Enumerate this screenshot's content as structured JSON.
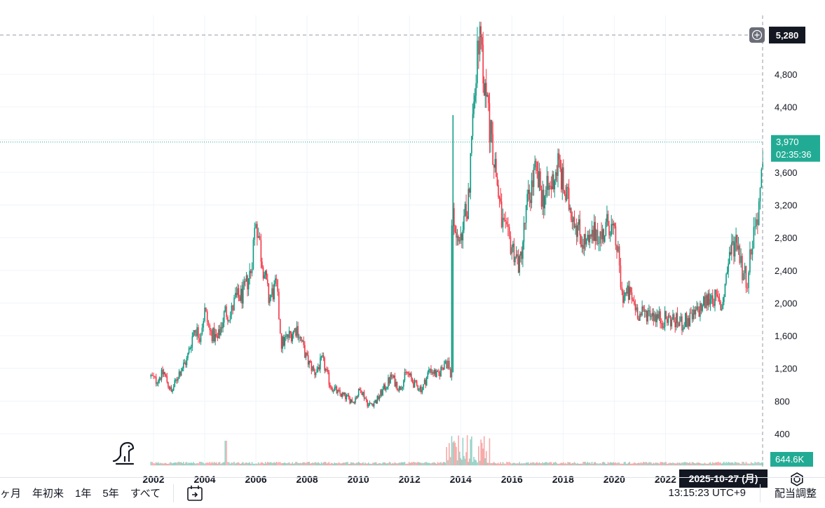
{
  "chart_data": {
    "type": "candlestick",
    "x_ticks": [
      "2002",
      "2004",
      "2006",
      "2008",
      "2010",
      "2012",
      "2014",
      "2016",
      "2018",
      "2020",
      "2022"
    ],
    "y_ticks": [
      400,
      800,
      1200,
      1600,
      2000,
      2400,
      2800,
      3200,
      3600,
      4000,
      4400,
      4800
    ],
    "y_tick_labels": [
      "400",
      "800",
      "1,200",
      "1,600",
      "2,000",
      "2,400",
      "2,800",
      "3,200",
      "3,600",
      "4,000",
      "4,400",
      "4,800"
    ],
    "ylim": [
      300,
      5380
    ],
    "xlim": [
      1999.7,
      2026.05
    ],
    "series": [
      {
        "x": [
          2001.9,
          2002.1,
          2002.4,
          2002.7,
          2003.0,
          2003.3,
          2003.6,
          2003.8,
          2004.0,
          2004.2,
          2004.5,
          2004.8,
          2005.0,
          2005.2,
          2005.5,
          2005.8,
          2006.0,
          2006.2,
          2006.5,
          2006.8,
          2007.0,
          2007.3,
          2007.6,
          2008.0,
          2008.3,
          2008.6,
          2008.9,
          2009.2,
          2009.5,
          2009.8,
          2010.1,
          2010.4,
          2010.7,
          2011.0,
          2011.3,
          2011.6,
          2011.9,
          2012.2,
          2012.5,
          2012.8,
          2013.1,
          2013.4,
          2013.6,
          2013.7,
          2014.0,
          2014.3,
          2014.6,
          2014.75,
          2015.0,
          2015.3,
          2015.6,
          2015.8,
          2016.0,
          2016.3,
          2016.6,
          2016.9,
          2017.2,
          2017.5,
          2017.8,
          2018.1,
          2018.4,
          2018.7,
          2019.0,
          2019.3,
          2019.5,
          2019.8,
          2020.1,
          2020.3,
          2020.6,
          2021.0,
          2021.4,
          2021.8,
          2022.2,
          2022.6,
          2023.0,
          2023.4,
          2023.8,
          2024.2,
          2024.5,
          2024.8,
          2025.0,
          2025.2,
          2025.4,
          2025.6,
          2025.8,
          2025.82
        ],
        "close": [
          1100,
          1050,
          1150,
          900,
          1150,
          1300,
          1700,
          1600,
          1900,
          1650,
          1550,
          1900,
          1850,
          2050,
          2100,
          2400,
          3050,
          2600,
          2050,
          2200,
          1500,
          1600,
          1700,
          1300,
          1150,
          1300,
          1000,
          900,
          850,
          800,
          950,
          750,
          800,
          950,
          1100,
          950,
          1150,
          1000,
          950,
          1200,
          1100,
          1300,
          1150,
          3000,
          2700,
          3300,
          4900,
          5100,
          4500,
          3800,
          3000,
          2800,
          2700,
          2450,
          3200,
          3600,
          3300,
          3400,
          3700,
          3300,
          3100,
          2800,
          2700,
          2900,
          2800,
          3000,
          2700,
          2100,
          2100,
          1850,
          1900,
          1800,
          1800,
          1750,
          1800,
          1950,
          2100,
          1950,
          2600,
          2800,
          2400,
          2300,
          2800,
          3100,
          3600,
          3970
        ]
      }
    ],
    "volume_labels": [],
    "annotations": {
      "crosshair_price": "5,280",
      "last_price": "3,970",
      "countdown": "02:35:36",
      "volume_value": "644.6K",
      "crosshair_date": "2025-10-27 (月)"
    },
    "colors": {
      "up": "#089981",
      "down": "#f23645",
      "last": "#22ab94",
      "crosshair": "#131722"
    }
  },
  "bottom_bar": {
    "ranges": [
      "ヶ月",
      "年初来",
      "1年",
      "5年",
      "すべて"
    ],
    "clock": "13:15:23 UTC+9",
    "adjust": "配当調整"
  }
}
